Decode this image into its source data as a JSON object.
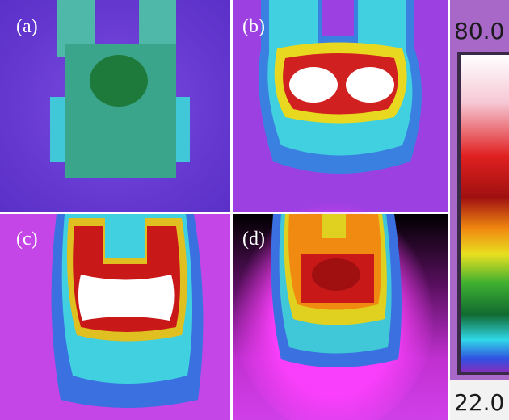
{
  "panels": [
    {
      "label": "(a)"
    },
    {
      "label": "(b)"
    },
    {
      "label": "(c)"
    },
    {
      "label": "(d)"
    }
  ],
  "color_scale": {
    "max_label": "80.0",
    "min_label": "22.0"
  }
}
